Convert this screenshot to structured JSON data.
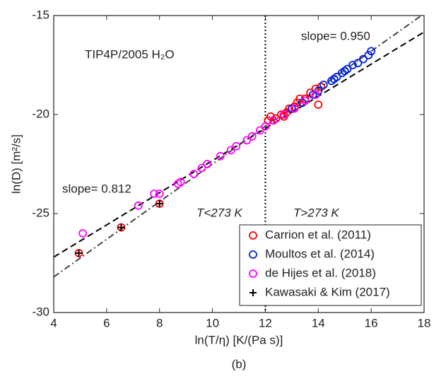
{
  "chart_data": {
    "type": "scatter",
    "xlabel": "ln(T/η) [K/(Pa s)]",
    "ylabel": "ln(D) [m²/s]",
    "caption": "(b)",
    "annotations": [
      "TIP4P/2005 H₂O",
      "slope= 0.950",
      "slope= 0.812",
      "T<273 K",
      "T>273 K"
    ],
    "xlim": [
      4,
      18
    ],
    "xticks": [
      4,
      6,
      8,
      10,
      12,
      14,
      16,
      18
    ],
    "ylim": [
      -30,
      -15
    ],
    "yticks": [
      -30,
      -25,
      -20,
      -15
    ],
    "vline": 12,
    "legend": "lower right",
    "series": [
      {
        "name": "Carrion et al. (2011)",
        "color": "#ff0000",
        "marker": "circle",
        "x": [
          12.1,
          12.2,
          12.3,
          12.4,
          12.6,
          12.7,
          12.8,
          12.9,
          13.1,
          13.2,
          13.3,
          13.5,
          13.7,
          13.9,
          14.0,
          14.1,
          4.95,
          6.55,
          8.0
        ],
        "values": [
          -20.3,
          -20.1,
          -20.3,
          -20.2,
          -20.0,
          -20.1,
          -19.9,
          -19.7,
          -19.6,
          -19.4,
          -19.2,
          -19.2,
          -18.9,
          -18.7,
          -19.5,
          -18.6,
          -27.0,
          -25.7,
          -24.5
        ]
      },
      {
        "name": "Moultos et al. (2014)",
        "color": "#0022dd",
        "marker": "circle",
        "x": [
          13.0,
          13.4,
          13.8,
          14.0,
          14.2,
          14.5,
          14.6,
          14.7,
          14.9,
          15.0,
          15.1,
          15.3,
          15.5,
          15.7,
          15.9,
          16.0
        ],
        "values": [
          -19.7,
          -19.4,
          -19.0,
          -18.8,
          -18.5,
          -18.3,
          -18.2,
          -18.1,
          -17.9,
          -17.8,
          -17.7,
          -17.5,
          -17.4,
          -17.2,
          -17.0,
          -16.8
        ]
      },
      {
        "name": "de Hijes et al. (2018)",
        "color": "#ff00ff",
        "marker": "circle",
        "x": [
          5.1,
          7.2,
          7.8,
          8.0,
          8.7,
          8.8,
          9.3,
          9.6,
          9.8,
          10.3,
          10.7,
          10.9,
          11.3,
          11.5,
          11.8,
          12.0,
          12.3,
          12.7,
          13.1,
          13.5,
          13.9
        ],
        "values": [
          -26.0,
          -24.6,
          -24.0,
          -24.0,
          -23.5,
          -23.4,
          -23.0,
          -22.7,
          -22.5,
          -22.1,
          -21.8,
          -21.6,
          -21.3,
          -21.1,
          -20.8,
          -20.6,
          -20.3,
          -20.0,
          -19.7,
          -19.3,
          -19.0
        ]
      },
      {
        "name": "Kawasaki & Kim (2017)",
        "color": "#000000",
        "marker": "plus",
        "x": [
          4.95,
          6.55,
          8.0
        ],
        "values": [
          -27.0,
          -25.7,
          -24.5
        ]
      }
    ],
    "fit_lines": [
      {
        "x": [
          4,
          18
        ],
        "values": [
          -27.2,
          -15.83
        ],
        "style": "dashed",
        "color": "#000000"
      },
      {
        "x": [
          4,
          18
        ],
        "values": [
          -28.2,
          -14.9
        ],
        "style": "dashdot",
        "color": "#444444"
      }
    ]
  }
}
